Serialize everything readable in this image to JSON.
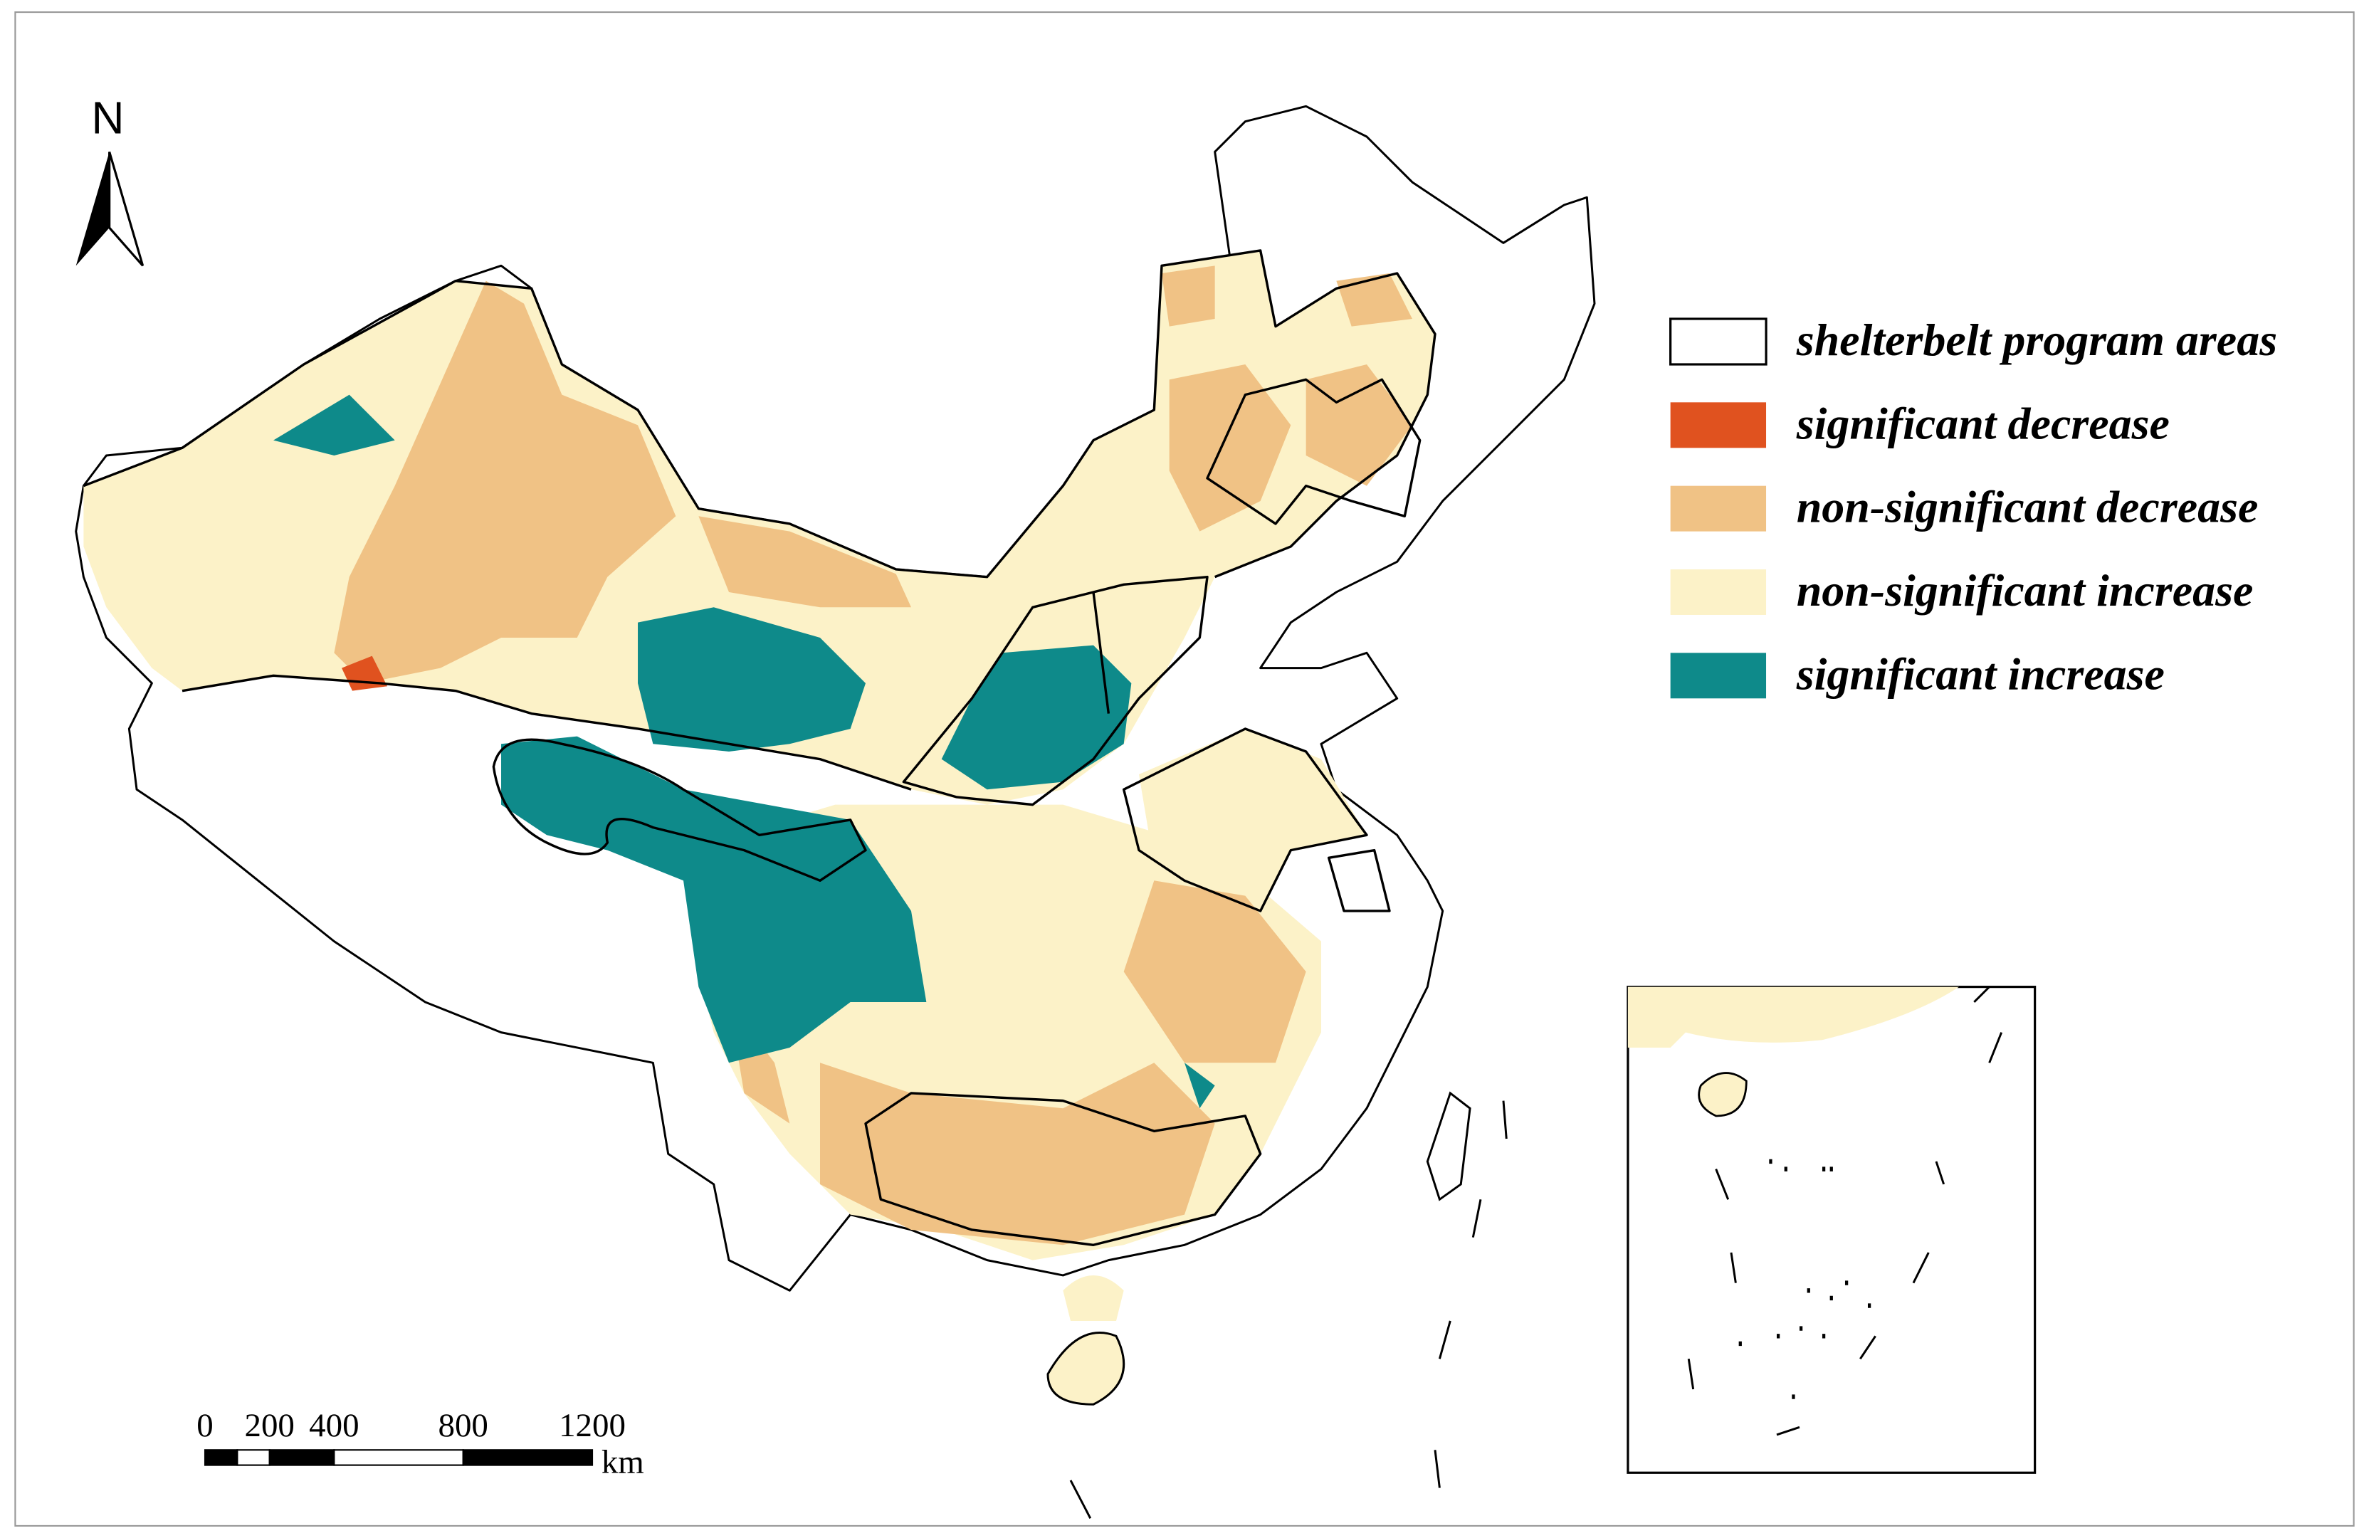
{
  "map": {
    "north_label": "N",
    "legend": [
      {
        "label": "shelterbelt program areas",
        "color": "#ffffff"
      },
      {
        "label": "significant decrease",
        "color": "#e0521f"
      },
      {
        "label": "non-significant decrease",
        "color": "#f0c285"
      },
      {
        "label": "non-significant increase",
        "color": "#fcf2c8"
      },
      {
        "label": "significant increase",
        "color": "#0e8a8a"
      }
    ],
    "scale_bar": {
      "ticks": [
        0,
        200,
        400,
        800,
        1200
      ],
      "unit": "km"
    }
  }
}
